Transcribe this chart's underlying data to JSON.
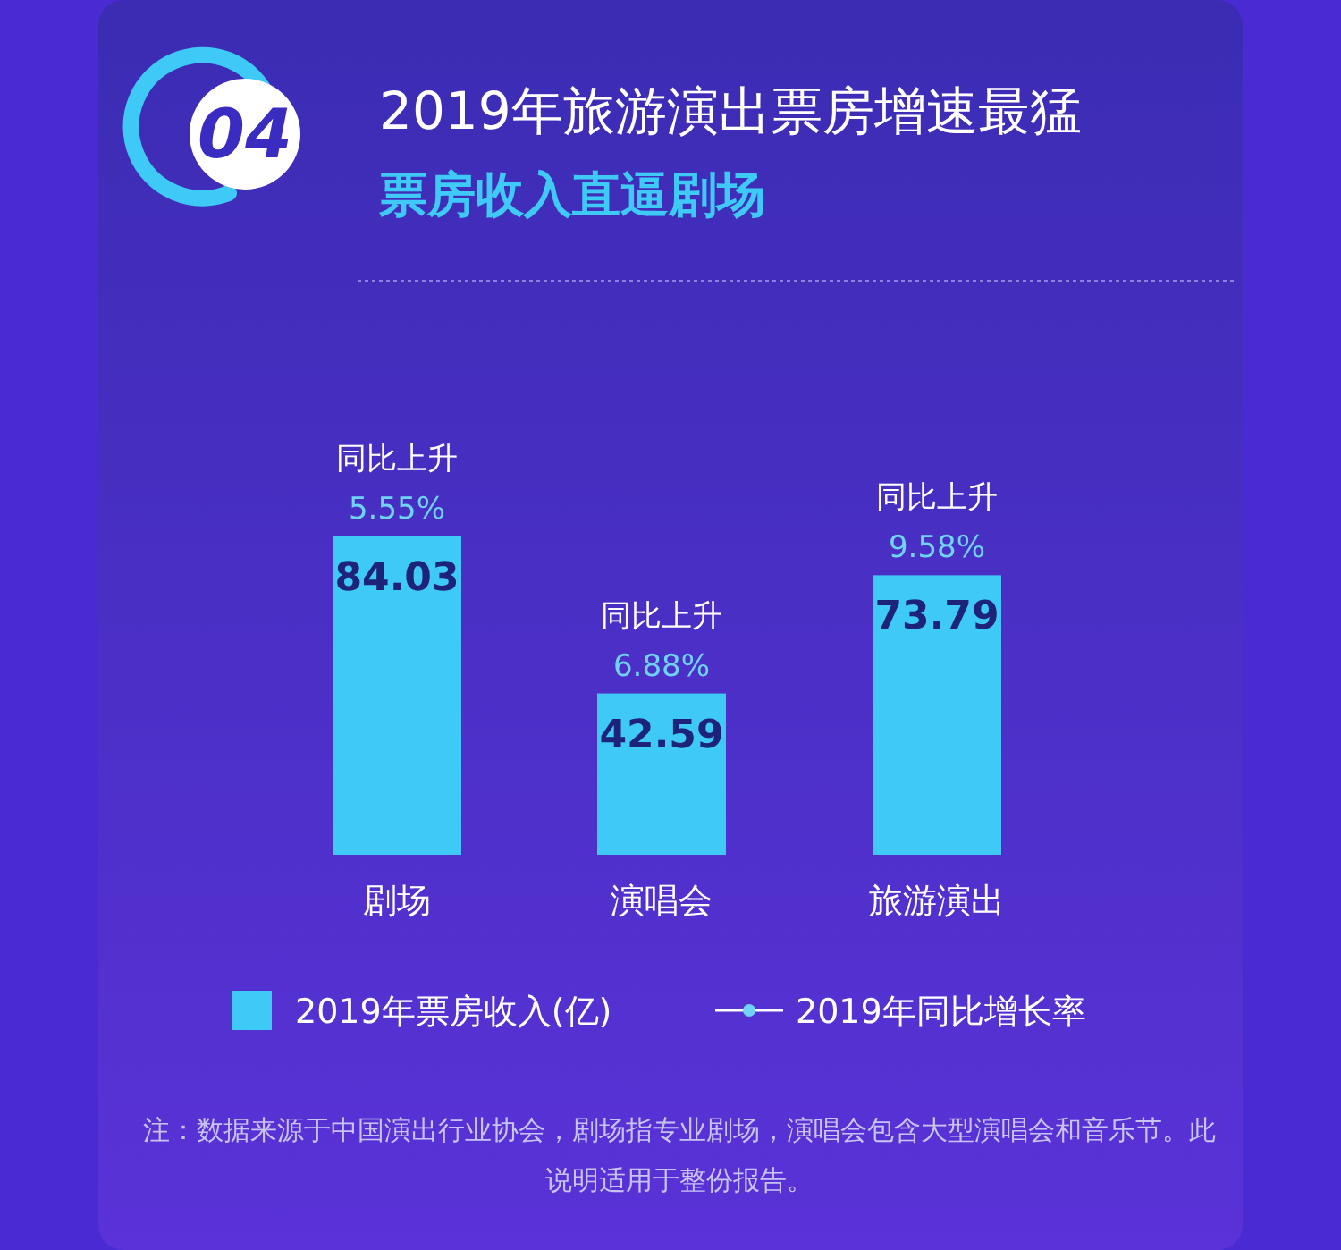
{
  "chart_data": {
    "type": "bar",
    "title": "2019年旅游演出票房增速最猛",
    "subtitle": "票房收入直逼剧场",
    "categories": [
      "剧场",
      "演唱会",
      "旅游演出"
    ],
    "series": [
      {
        "name": "2019年票房收入(亿)",
        "color": "#3fc9f6",
        "values": [
          84.03,
          42.59,
          73.79
        ]
      },
      {
        "name": "2019年同比增长率",
        "type": "line",
        "color": "#6fd3fb",
        "marker": "circle",
        "values": [
          null,
          null,
          null
        ]
      }
    ],
    "data_labels": true,
    "legend": "bottom",
    "grid": false,
    "annotations": [
      "04",
      {
        "text": "同比上升",
        "x": "剧场",
        "y": 84.03
      },
      {
        "text": "5.55%",
        "x": "剧场",
        "y": 84.03
      },
      {
        "text": "同比上升",
        "x": "演唱会",
        "y": 42.59
      },
      {
        "text": "6.88%",
        "x": "演唱会",
        "y": 42.59
      },
      {
        "text": "同比上升",
        "x": "旅游演出",
        "y": 73.79
      },
      {
        "text": "9.58%",
        "x": "旅游演出",
        "y": 73.79
      },
      "注：数据来源于中国演出行业协会，剧场指专业剧场，演唱会包含大型演唱会和音乐节。此说明适用于整份报告。"
    ]
  }
}
